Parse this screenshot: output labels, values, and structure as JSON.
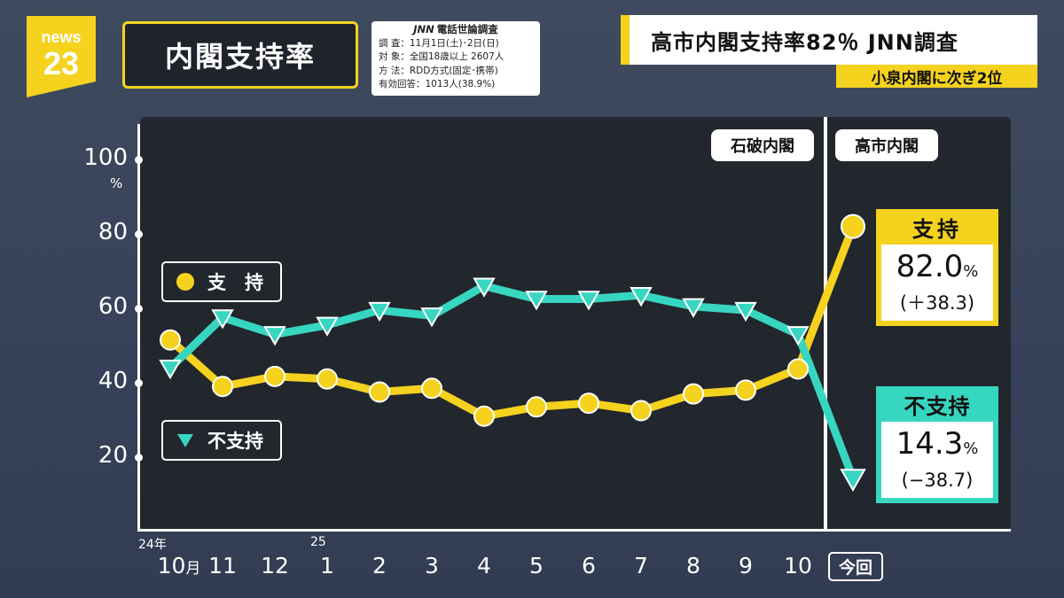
{
  "header": {
    "logo_top": "news",
    "logo_num": "23",
    "title": "内閣支持率",
    "headline": "高市内閣支持率82％ JNN調査",
    "subheadline": "小泉内閣に次ぎ2位"
  },
  "survey": {
    "brand": "JNN",
    "title": "電話世論調査",
    "rows": [
      "調 査：11月1日(土)･2日(日)",
      "対 象：全国18歳以上 2607人",
      "方 法：RDD方式(固定･携帯)",
      "有効回答：1013人(38.9%)"
    ]
  },
  "eras": {
    "left": "石破内閣",
    "right": "高市内閣"
  },
  "legend": {
    "support": "支　持",
    "nonsupport": "不支持"
  },
  "result_boxes": {
    "support": {
      "label": "支持",
      "value": "82.0",
      "unit": "%",
      "change": "(＋38.3)"
    },
    "nonsupport": {
      "label": "不支持",
      "value": "14.3",
      "unit": "%",
      "change": "(−38.7)"
    }
  },
  "axis": {
    "x_year_start": "24年",
    "x_year_2025": "25",
    "x_month_suffix": "月",
    "now_label": "今回"
  },
  "colors": {
    "support": "#f4d21e",
    "nonsupport": "#37d6c0",
    "panel": "#22262d"
  },
  "chart_data": {
    "type": "line",
    "categories": [
      "10",
      "11",
      "12",
      "1",
      "2",
      "3",
      "4",
      "5",
      "6",
      "7",
      "8",
      "9",
      "10",
      "今回"
    ],
    "series": [
      {
        "name": "支持",
        "values": [
          51.5,
          39.0,
          41.7,
          41.0,
          37.5,
          38.5,
          31.0,
          33.5,
          34.5,
          32.5,
          37.0,
          38.0,
          43.7,
          82.0
        ]
      },
      {
        "name": "不支持",
        "values": [
          44.0,
          57.5,
          53.0,
          55.5,
          59.5,
          58.0,
          66.0,
          62.5,
          62.5,
          63.5,
          60.5,
          59.5,
          53.0,
          14.3
        ]
      }
    ],
    "yticks": [
      20,
      40,
      60,
      80,
      100
    ],
    "y_unit": "%",
    "ylim": [
      10,
      110
    ],
    "legend_position": "left",
    "grid": false
  }
}
